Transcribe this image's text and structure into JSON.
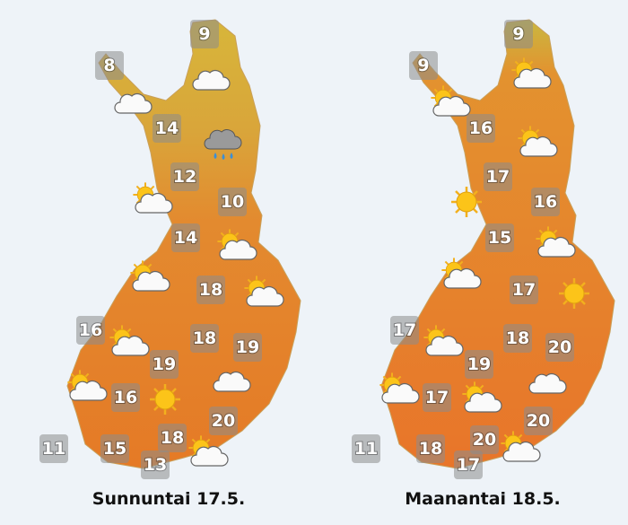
{
  "maps": [
    {
      "label": "Sunnuntai 17.5.",
      "temperatures": [
        9,
        8,
        14,
        12,
        10,
        14,
        18,
        16,
        18,
        19,
        19,
        16,
        20,
        18,
        11,
        15,
        13
      ]
    },
    {
      "label": "Maanantai 18.5.",
      "temperatures": [
        9,
        9,
        16,
        17,
        16,
        15,
        17,
        17,
        18,
        20,
        19,
        17,
        20,
        20,
        11,
        18,
        17
      ]
    }
  ]
}
